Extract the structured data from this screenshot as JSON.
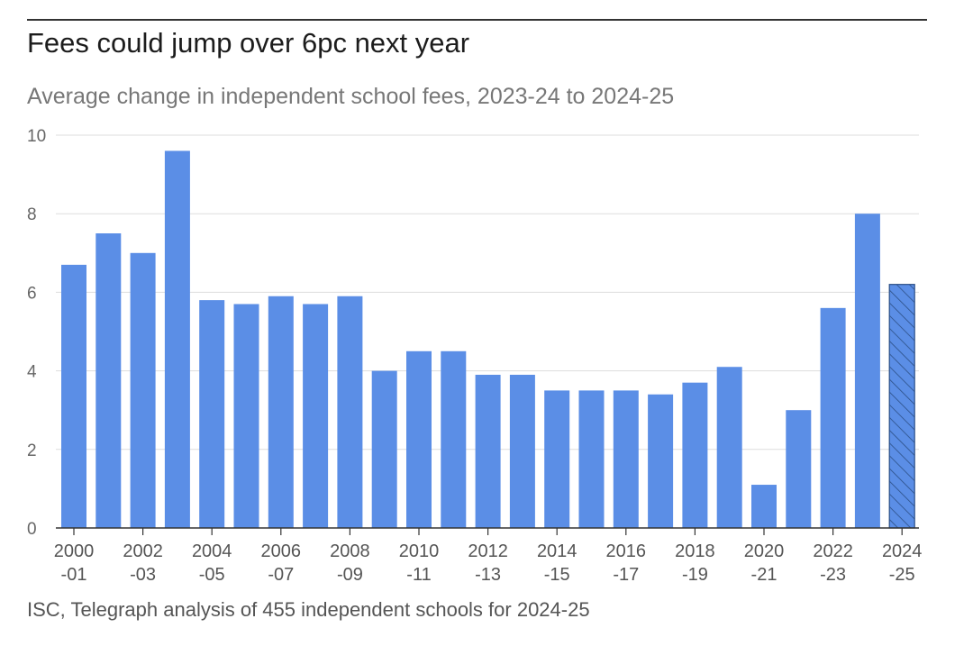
{
  "header": {
    "title": "Fees could jump over 6pc next year",
    "subtitle": "Average change in independent school fees, 2023-24 to 2024-25"
  },
  "footer": {
    "source": "ISC, Telegraph analysis of 455 independent schools for 2024-25"
  },
  "colors": {
    "bar": "#5b8ee6",
    "projected_hatch": "#2c4f86",
    "grid": "#dddddd",
    "axis": "#333333"
  },
  "chart_data": {
    "type": "bar",
    "title": "Fees could jump over 6pc next year",
    "subtitle": "Average change in independent school fees, 2023-24 to 2024-25",
    "xlabel": "",
    "ylabel": "",
    "ylim": [
      0,
      10
    ],
    "yticks": [
      0,
      2,
      4,
      6,
      8,
      10
    ],
    "grid": true,
    "categories": [
      "2000-01",
      "2001-02",
      "2002-03",
      "2003-04",
      "2004-05",
      "2005-06",
      "2006-07",
      "2007-08",
      "2008-09",
      "2009-10",
      "2010-11",
      "2011-12",
      "2012-13",
      "2013-14",
      "2014-15",
      "2015-16",
      "2016-17",
      "2017-18",
      "2018-19",
      "2019-20",
      "2020-21",
      "2021-22",
      "2022-23",
      "2023-24",
      "2024-25"
    ],
    "values": [
      6.7,
      7.5,
      7.0,
      9.6,
      5.8,
      5.7,
      5.9,
      5.7,
      5.9,
      4.0,
      4.5,
      4.5,
      3.9,
      3.9,
      3.5,
      3.5,
      3.5,
      3.4,
      3.7,
      4.1,
      1.1,
      3.0,
      5.6,
      8.0,
      6.2
    ],
    "projected": [
      false,
      false,
      false,
      false,
      false,
      false,
      false,
      false,
      false,
      false,
      false,
      false,
      false,
      false,
      false,
      false,
      false,
      false,
      false,
      false,
      false,
      false,
      false,
      false,
      true
    ],
    "xtick_labels": [
      {
        "index": 0,
        "line1": "2000",
        "line2": "-01"
      },
      {
        "index": 2,
        "line1": "2002",
        "line2": "-03"
      },
      {
        "index": 4,
        "line1": "2004",
        "line2": "-05"
      },
      {
        "index": 6,
        "line1": "2006",
        "line2": "-07"
      },
      {
        "index": 8,
        "line1": "2008",
        "line2": "-09"
      },
      {
        "index": 10,
        "line1": "2010",
        "line2": "-11"
      },
      {
        "index": 12,
        "line1": "2012",
        "line2": "-13"
      },
      {
        "index": 14,
        "line1": "2014",
        "line2": "-15"
      },
      {
        "index": 16,
        "line1": "2016",
        "line2": "-17"
      },
      {
        "index": 18,
        "line1": "2018",
        "line2": "-19"
      },
      {
        "index": 20,
        "line1": "2020",
        "line2": "-21"
      },
      {
        "index": 22,
        "line1": "2022",
        "line2": "-23"
      },
      {
        "index": 24,
        "line1": "2024",
        "line2": "-25"
      }
    ]
  }
}
